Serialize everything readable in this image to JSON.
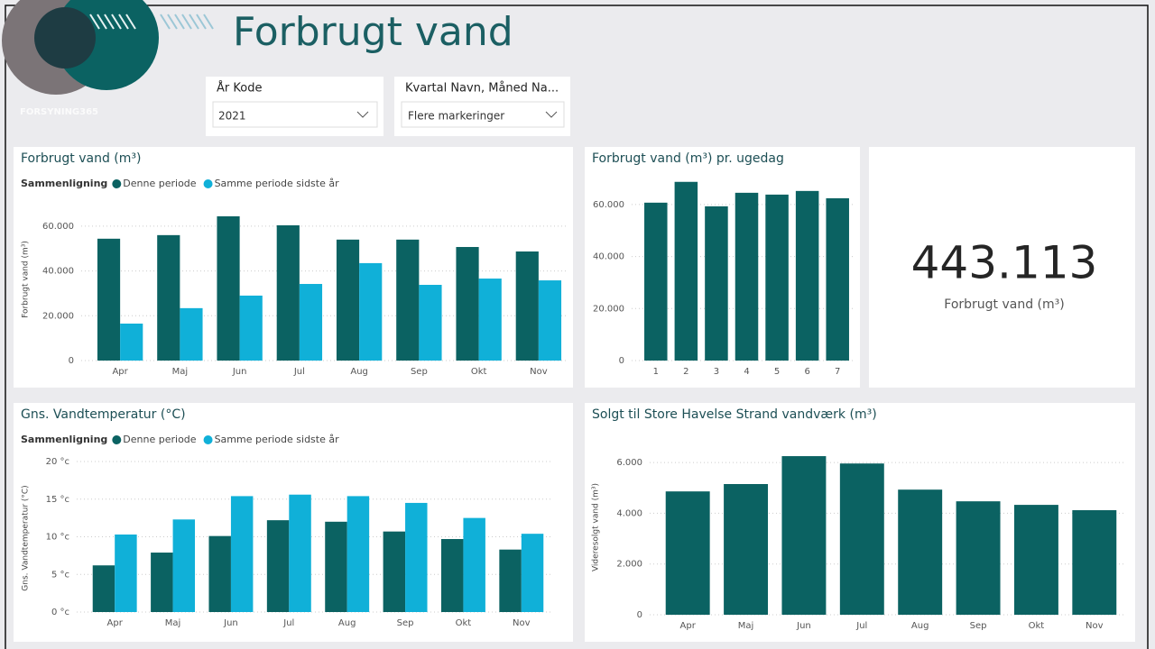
{
  "header": {
    "title": "Forbrugt vand",
    "logo": "FORSYNING365"
  },
  "slicers": [
    {
      "label": "År Kode",
      "value": "2021"
    },
    {
      "label": "Kvartal Navn, Måned Na...",
      "value": "Flere markeringer"
    }
  ],
  "card": {
    "value": "443.113",
    "label": "Forbrugt vand (m³)"
  },
  "chart_data": [
    {
      "type": "bar",
      "title": "Forbrugt vand (m³)",
      "legend_title": "Sammenligning",
      "y_label": "Forbrugt vand (m³)",
      "categories": [
        "Apr",
        "Maj",
        "Jun",
        "Jul",
        "Aug",
        "Sep",
        "Okt",
        "Nov"
      ],
      "series": [
        {
          "name": "Denne periode",
          "color": "#0b6262",
          "values": [
            54400,
            56000,
            64400,
            60400,
            54000,
            54000,
            50700,
            48700
          ]
        },
        {
          "name": "Samme periode sidste år",
          "color": "#10b0d8",
          "values": [
            16500,
            23400,
            29000,
            34200,
            43500,
            33800,
            36600,
            35800
          ]
        }
      ],
      "ylim": [
        0,
        66000
      ],
      "yticks": [
        0,
        {
          "value": 20000,
          "label": "20.000"
        },
        {
          "value": 40000,
          "label": "40.000"
        },
        {
          "value": 60000,
          "label": "60.000"
        }
      ],
      "grid": true
    },
    {
      "type": "bar",
      "title": "Forbrugt vand (m³) pr. ugedag",
      "categories": [
        "1",
        "2",
        "3",
        "4",
        "5",
        "6",
        "7"
      ],
      "values": [
        60700,
        68700,
        59300,
        64500,
        63800,
        65200,
        62400
      ],
      "color": "#0b6262",
      "ylim": [
        0,
        70000
      ],
      "yticks": [
        0,
        {
          "value": 20000,
          "label": "20.000"
        },
        {
          "value": 40000,
          "label": "40.000"
        },
        {
          "value": 60000,
          "label": "60.000"
        }
      ],
      "grid": true
    },
    {
      "type": "bar",
      "title": "Gns. Vandtemperatur (°C)",
      "legend_title": "Sammenligning",
      "y_label": "Gns. Vandtemperatur (°C)",
      "categories": [
        "Apr",
        "Maj",
        "Jun",
        "Jul",
        "Aug",
        "Sep",
        "Okt",
        "Nov"
      ],
      "series": [
        {
          "name": "Denne periode",
          "color": "#0b6262",
          "values": [
            6.2,
            7.9,
            10.1,
            12.2,
            12.0,
            10.7,
            9.7,
            8.3
          ]
        },
        {
          "name": "Samme periode sidste år",
          "color": "#10b0d8",
          "values": [
            10.3,
            12.3,
            15.4,
            15.6,
            15.4,
            14.5,
            12.5,
            10.4
          ]
        }
      ],
      "ylim": [
        0,
        20
      ],
      "yticks": [
        {
          "value": 0,
          "label": "0 °c"
        },
        {
          "value": 5,
          "label": "5 °c"
        },
        {
          "value": 10,
          "label": "10 °c"
        },
        {
          "value": 15,
          "label": "15 °c"
        },
        {
          "value": 20,
          "label": "20 °c"
        }
      ],
      "grid": true
    },
    {
      "type": "bar",
      "title": "Solgt til Store Havelse Strand vandværk (m³)",
      "y_label": "Videresolgt vand (m³)",
      "categories": [
        "Apr",
        "Maj",
        "Jun",
        "Jul",
        "Aug",
        "Sep",
        "Okt",
        "Nov"
      ],
      "values": [
        4860,
        5150,
        6250,
        5960,
        4930,
        4470,
        4330,
        4120
      ],
      "color": "#0b6262",
      "ylim": [
        0,
        6500
      ],
      "yticks": [
        0,
        {
          "value": 2000,
          "label": "2.000"
        },
        {
          "value": 4000,
          "label": "4.000"
        },
        {
          "value": 6000,
          "label": "6.000"
        }
      ],
      "grid": true
    }
  ]
}
